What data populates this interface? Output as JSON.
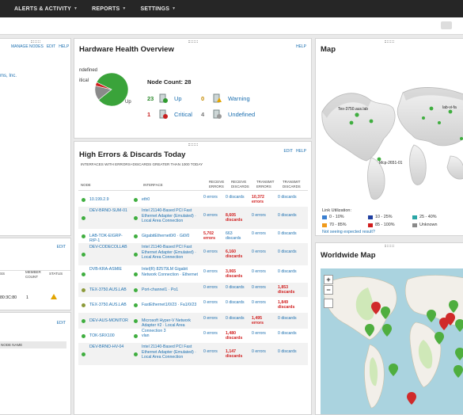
{
  "nav": {
    "items": [
      "ALERTS & ACTIVITY",
      "REPORTS",
      "SETTINGS"
    ]
  },
  "left": {
    "links": [
      "MANAGE NODES",
      "EDIT",
      "HELP"
    ],
    "frag_title": "ms, Inc.",
    "frag_edit": "EDIT",
    "frag_edit2": "EDIT",
    "cols": [
      "SS",
      "MEMBER COUNT",
      "STATUS"
    ],
    "row_mac": "80:3C:80",
    "row_count": "1",
    "node_name_col": "NODE NAME"
  },
  "hw": {
    "title": "Hardware Health Overview",
    "help": "HELP",
    "pie_labels": {
      "undefined": "ndefined",
      "critical": "itical",
      "up": "Up"
    },
    "node_count_label": "Node Count:",
    "node_count": "28",
    "stats": [
      {
        "num": "23",
        "label": "Up",
        "color": "#2e8b2e"
      },
      {
        "num": "0",
        "label": "Warning",
        "color": "#c58a00"
      },
      {
        "num": "1",
        "label": "Critical",
        "color": "#c81f1f"
      },
      {
        "num": "4",
        "label": "Undefined",
        "color": "#777"
      }
    ],
    "pie": {
      "up": 23,
      "critical": 1,
      "undefined": 4
    }
  },
  "errs": {
    "title": "High Errors & Discards Today",
    "links": [
      "EDIT",
      "HELP"
    ],
    "subtitle": "INTERFACES WITH ERRORS+DISCARDS GREATER THAN 1000 TODAY",
    "headers": [
      "NODE",
      "INTERFACE",
      "RECEIVE ERRORS",
      "RECEIVE DISCARDS",
      "TRANSMIT ERRORS",
      "TRANSMIT DISCARDS"
    ],
    "rows": [
      {
        "node": "10.199.2.9",
        "iface": "eth0",
        "re": "0 errors",
        "rd": "0 discards",
        "te": "10,372 errors",
        "td": "0 discards",
        "dot": "#3fae3f",
        "red": [
          false,
          false,
          true,
          false
        ]
      },
      {
        "node": "DEV-BRNO-SUM-01",
        "iface": "Intel 21140-Based PCI Fast Ethernet Adapter (Emulated) · Local Area Connection",
        "re": "0 errors",
        "rd": "8,605 discards",
        "te": "0 errors",
        "td": "0 discards",
        "dot": "#3fae3f",
        "red": [
          false,
          true,
          false,
          false
        ]
      },
      {
        "node": "LAB-TOK-EIGRP-RIP-1",
        "iface": "GigabitEthernet0/0 · Gi0/0",
        "re": "5,702 errors",
        "rd": "663 discards",
        "te": "0 errors",
        "td": "0 discards",
        "dot": "#3fae3f",
        "red": [
          true,
          false,
          false,
          false
        ]
      },
      {
        "node": "DEV-CODECOLLAB",
        "iface": "Intel 21140-Based PCI Fast Ethernet Adapter (Emulated) · Local Area Connection",
        "re": "0 errors",
        "rd": "6,160 discards",
        "te": "0 errors",
        "td": "0 discards",
        "dot": "#3fae3f",
        "red": [
          false,
          true,
          false,
          false
        ]
      },
      {
        "node": "DVB-KRA-ASMIE",
        "iface": "Intel(R) 82579LM Gigabit Network Connection · Ethernet",
        "re": "0 errors",
        "rd": "3,065 discards",
        "te": "0 errors",
        "td": "0 discards",
        "dot": "#3fae3f",
        "red": [
          false,
          true,
          false,
          false
        ]
      },
      {
        "node": "TEX-3750.AUS.LAB",
        "iface": "Port-channel1 · Po1",
        "re": "0 errors",
        "rd": "0 discards",
        "te": "0 errors",
        "td": "1,853 discards",
        "dot": "#8c9a3a",
        "red": [
          false,
          false,
          false,
          true
        ]
      },
      {
        "node": "TEX-3750.AUS.LAB",
        "iface": "FastEthernet1/0/23 · Fa1/0/23",
        "re": "0 errors",
        "rd": "0 discards",
        "te": "0 errors",
        "td": "1,849 discards",
        "dot": "#8c9a3a",
        "red": [
          false,
          false,
          false,
          true
        ]
      },
      {
        "node": "DEV-AUS-MONITOR",
        "iface": "Microsoft Hyper-V Network Adapter #2 · Local Area Connection 3",
        "re": "0 errors",
        "rd": "0 discards",
        "te": "1,495 errors",
        "td": "0 discards",
        "dot": "#3fae3f",
        "red": [
          false,
          false,
          true,
          false
        ]
      },
      {
        "node": "TOK-SRX100",
        "iface": "vlan",
        "re": "0 errors",
        "rd": "1,480 discards",
        "te": "0 errors",
        "td": "0 discards",
        "dot": "#3fae3f",
        "red": [
          false,
          true,
          false,
          false
        ]
      },
      {
        "node": "DEV-BRNO-HV-04",
        "iface": "Intel 21140-Based PCI Fast Ethernet Adapter (Emulated) · Local Area Connection",
        "re": "0 errors",
        "rd": "1,147 discards",
        "te": "0 errors",
        "td": "0 discards",
        "dot": "#3fae3f",
        "red": [
          false,
          true,
          false,
          false
        ]
      }
    ]
  },
  "map": {
    "title": "Map",
    "labels": [
      "Tex-3750.aus.lab",
      "lab-vi-fa",
      "Mcp-2651-01"
    ],
    "legend_title": "Link Utilization:",
    "legend": [
      {
        "label": "0 - 10%",
        "color": "#3a7fd0"
      },
      {
        "label": "10 - 25%",
        "color": "#1f3fa0"
      },
      {
        "label": "25 - 40%",
        "color": "#2aa6a6"
      },
      {
        "label": "70 - 85%",
        "color": "#f09a1a"
      },
      {
        "label": "85 - 100%",
        "color": "#d01c1c"
      },
      {
        "label": "Unknown",
        "color": "#8a8a8a"
      }
    ],
    "help_link": "Not seeing expected result?"
  },
  "wmap": {
    "title": "Worldwide Map",
    "zoom_in": "+",
    "zoom_out": "−"
  }
}
